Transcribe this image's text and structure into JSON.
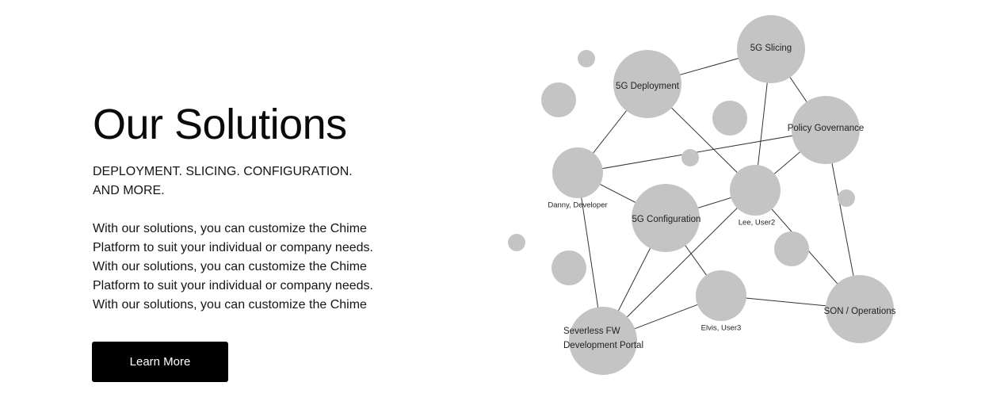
{
  "hero": {
    "title": "Our Solutions",
    "subtitle_lines": [
      "DEPLOYMENT. SLICING. CONFIGURATION.",
      "AND MORE."
    ],
    "body_lines": [
      "With our solutions, you can customize the Chime",
      "Platform to suit your individual or company needs.",
      "With our solutions, you can customize the Chime",
      "Platform to suit your individual or company needs.",
      "With our solutions, you can customize the Chime"
    ],
    "cta_label": "Learn More"
  },
  "diagram": {
    "node_color": "#c4c4c4",
    "edge_color": "#333333",
    "nodes": [
      {
        "id": "slicing",
        "label": "5G Slicing"
      },
      {
        "id": "deployment",
        "label": "5G Deployment"
      },
      {
        "id": "policy",
        "label": "Policy Governance"
      },
      {
        "id": "danny",
        "label": "Danny, Developer"
      },
      {
        "id": "config",
        "label": "5G Configuration"
      },
      {
        "id": "lee",
        "label": "Lee, User2"
      },
      {
        "id": "elvis",
        "label": "Elvis, User3"
      },
      {
        "id": "son",
        "label": "SON / Operations"
      },
      {
        "id": "serverless",
        "label": "Severless FW Development Portal",
        "label_lines": [
          "Severless FW",
          "Development Portal"
        ]
      }
    ],
    "edges": [
      [
        "deployment",
        "slicing"
      ],
      [
        "slicing",
        "policy"
      ],
      [
        "slicing",
        "lee"
      ],
      [
        "deployment",
        "danny"
      ],
      [
        "deployment",
        "lee"
      ],
      [
        "policy",
        "danny"
      ],
      [
        "policy",
        "lee"
      ],
      [
        "policy",
        "son"
      ],
      [
        "danny",
        "config"
      ],
      [
        "danny",
        "serverless"
      ],
      [
        "config",
        "lee"
      ],
      [
        "config",
        "serverless"
      ],
      [
        "config",
        "elvis"
      ],
      [
        "lee",
        "serverless"
      ],
      [
        "lee",
        "son"
      ],
      [
        "elvis",
        "serverless"
      ],
      [
        "elvis",
        "son"
      ]
    ]
  }
}
